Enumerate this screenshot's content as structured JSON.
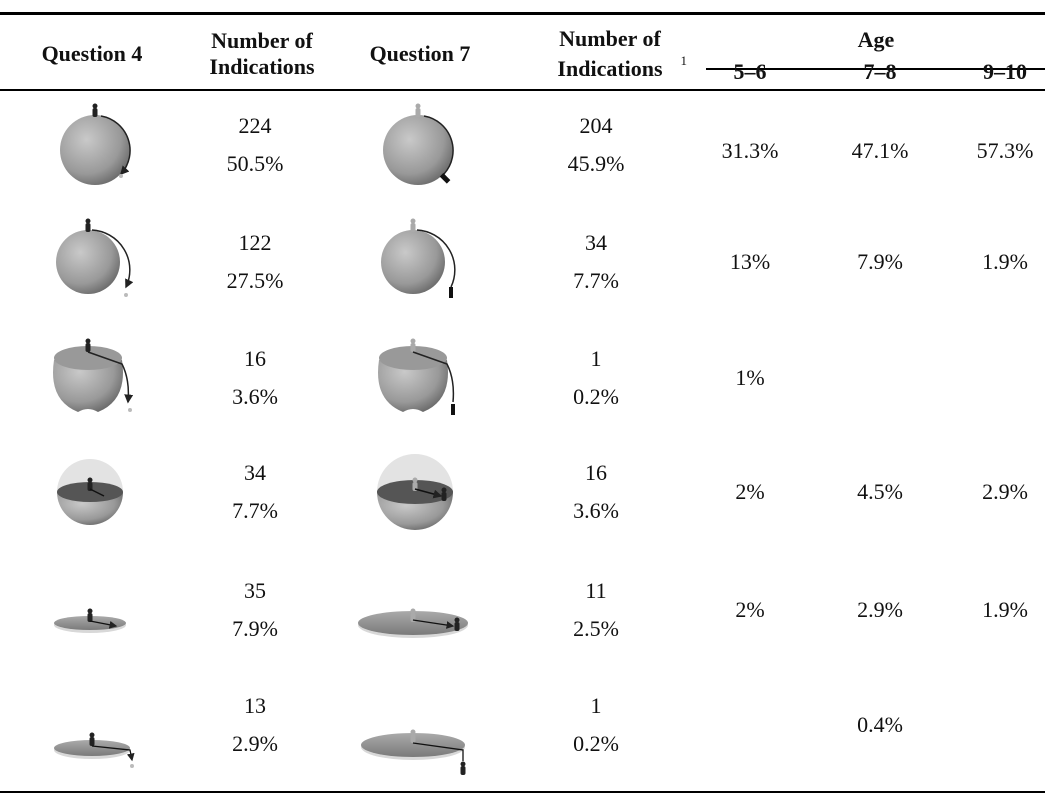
{
  "header": {
    "question4": "Question 4",
    "indications_q4": "Number of Indications",
    "question7": "Question 7",
    "indications_q7": "Number of Indications",
    "footnote_mark": "1",
    "age": "Age",
    "age_groups": [
      "5–6",
      "7–8",
      "9–10"
    ]
  },
  "rows": [
    {
      "q4_count": "224",
      "q4_percent": "50.5%",
      "q7_count": "204",
      "q7_percent": "45.9%",
      "age": [
        "31.3%",
        "47.1%",
        "57.3%"
      ]
    },
    {
      "q4_count": "122",
      "q4_percent": "27.5%",
      "q7_count": "34",
      "q7_percent": "7.7%",
      "age": [
        "13%",
        "7.9%",
        "1.9%"
      ]
    },
    {
      "q4_count": "16",
      "q4_percent": "3.6%",
      "q7_count": "1",
      "q7_percent": "0.2%",
      "age": [
        "1%",
        null,
        null
      ]
    },
    {
      "q4_count": "34",
      "q4_percent": "7.7%",
      "q7_count": "16",
      "q7_percent": "3.6%",
      "age": [
        "2%",
        "4.5%",
        "2.9%"
      ]
    },
    {
      "q4_count": "35",
      "q4_percent": "7.9%",
      "q7_count": "11",
      "q7_percent": "2.5%",
      "age": [
        "2%",
        "2.9%",
        "1.9%"
      ]
    },
    {
      "q4_count": "13",
      "q4_percent": "2.9%",
      "q7_count": "1",
      "q7_percent": "0.2%",
      "age": [
        null,
        "0.4%",
        null
      ]
    }
  ]
}
